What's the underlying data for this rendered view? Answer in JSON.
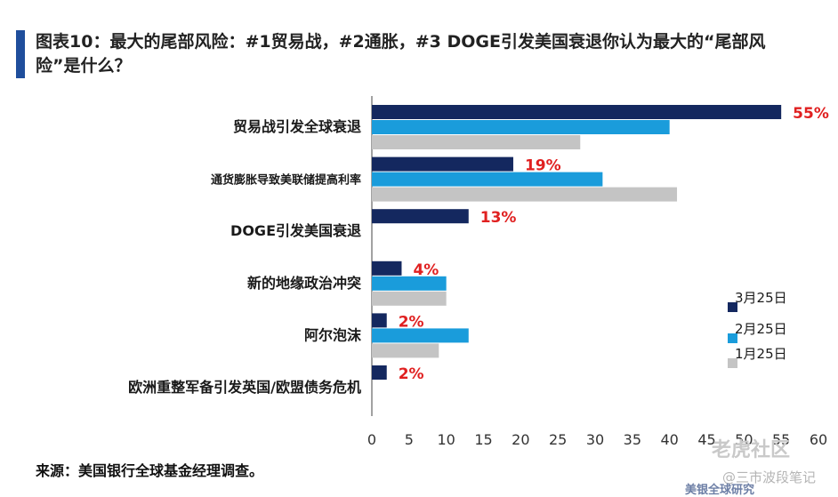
{
  "title": "图表10：最大的尾部风险：#1贸易战，#2通胀，#3 DOGE引发美国衰退你认为最大的“尾部风险”是什么？",
  "source": "来源：美国银行全球基金经理调查。",
  "watermarks": [
    "老虎社区",
    "@三市波段笔记",
    "美银全球研究"
  ],
  "colors": {
    "mar25": "#14285f",
    "feb25": "#1a9cdb",
    "jan25": "#c4c4c4",
    "label": "#e02020",
    "accent": "#1f4e9c"
  },
  "chart_data": {
    "type": "bar",
    "orientation": "horizontal",
    "categories": [
      "贸易战引发全球衰退",
      "通货膨胀导致美联储提高利率",
      "DOGE引发美国衰退",
      "新的地缘政治冲突",
      "阿尔泡沫",
      "欧洲重整军备引发英国/欧盟债务危机"
    ],
    "series": [
      {
        "name": "3月25日",
        "values": [
          55,
          19,
          13,
          4,
          2,
          2
        ]
      },
      {
        "name": "2月25日",
        "values": [
          40,
          31,
          null,
          10,
          13,
          null
        ]
      },
      {
        "name": "1月25日",
        "values": [
          28,
          41,
          null,
          10,
          9,
          null
        ]
      }
    ],
    "data_labels": [
      "55%",
      "19%",
      "13%",
      "4%",
      "2%",
      "2%"
    ],
    "xticks": [
      0,
      5,
      10,
      15,
      20,
      25,
      30,
      35,
      40,
      45,
      50,
      55,
      60
    ],
    "xlim": [
      0,
      60
    ],
    "legend_position": "bottom-right",
    "grid": false
  }
}
